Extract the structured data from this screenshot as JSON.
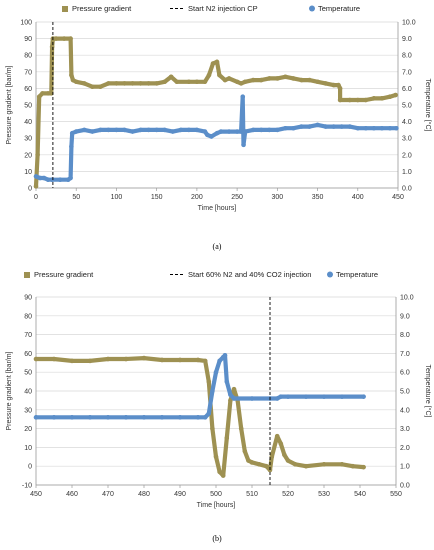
{
  "chart_data": [
    {
      "type": "scatter",
      "caption": "(a)",
      "xlabel": "Time [hours]",
      "ylabel": "Pressure gradient [bar/m]",
      "y2label": "Temperature [°C]",
      "xlim": [
        0,
        450
      ],
      "ylim": [
        0,
        100
      ],
      "y2lim": [
        0,
        10
      ],
      "xticks": [
        "0",
        "50",
        "100",
        "150",
        "200",
        "250",
        "300",
        "350",
        "400",
        "450"
      ],
      "yticks": [
        "0",
        "10",
        "20",
        "30",
        "40",
        "50",
        "60",
        "70",
        "80",
        "90",
        "100"
      ],
      "y2ticks": [
        "0.0",
        "1.0",
        "2.0",
        "3.0",
        "4.0",
        "5.0",
        "6.0",
        "7.0",
        "8.0",
        "9.0",
        "10.0"
      ],
      "grid": true,
      "legend": {
        "placement": "top",
        "entries": [
          "Pressure gradient",
          "Start N2 injection CP",
          "Temperature"
        ]
      },
      "colors": {
        "pressure": "#9e9152",
        "temperature": "#5b8ec9",
        "marker": "#000000"
      },
      "vline_x": 21,
      "series": [
        {
          "name": "Pressure gradient",
          "axis": "left",
          "points": [
            [
              0,
              1
            ],
            [
              2,
              20
            ],
            [
              4,
              55
            ],
            [
              8,
              57
            ],
            [
              15,
              57
            ],
            [
              19,
              57
            ],
            [
              20,
              85
            ],
            [
              21,
              90
            ],
            [
              25,
              90
            ],
            [
              35,
              90
            ],
            [
              43,
              90
            ],
            [
              44,
              68
            ],
            [
              46,
              65
            ],
            [
              50,
              64
            ],
            [
              60,
              63
            ],
            [
              70,
              61
            ],
            [
              80,
              61
            ],
            [
              90,
              63
            ],
            [
              100,
              63
            ],
            [
              110,
              63
            ],
            [
              120,
              63
            ],
            [
              130,
              63
            ],
            [
              140,
              63
            ],
            [
              150,
              63
            ],
            [
              160,
              64
            ],
            [
              168,
              67
            ],
            [
              175,
              64
            ],
            [
              190,
              64
            ],
            [
              200,
              64
            ],
            [
              210,
              64
            ],
            [
              215,
              68
            ],
            [
              220,
              75
            ],
            [
              225,
              76
            ],
            [
              228,
              68
            ],
            [
              235,
              65
            ],
            [
              240,
              66
            ],
            [
              250,
              64
            ],
            [
              255,
              63
            ],
            [
              260,
              64
            ],
            [
              270,
              65
            ],
            [
              280,
              65
            ],
            [
              290,
              66
            ],
            [
              300,
              66
            ],
            [
              310,
              67
            ],
            [
              320,
              66
            ],
            [
              330,
              65
            ],
            [
              340,
              65
            ],
            [
              350,
              64
            ],
            [
              360,
              63
            ],
            [
              370,
              62
            ],
            [
              376,
              62
            ],
            [
              378,
              60
            ],
            [
              378,
              53
            ],
            [
              390,
              53
            ],
            [
              400,
              53
            ],
            [
              410,
              53
            ],
            [
              420,
              54
            ],
            [
              430,
              54
            ],
            [
              440,
              55
            ],
            [
              447,
              56
            ]
          ]
        },
        {
          "name": "Temperature",
          "axis": "right",
          "points": [
            [
              0,
              0.7
            ],
            [
              5,
              0.6
            ],
            [
              10,
              0.6
            ],
            [
              15,
              0.5
            ],
            [
              20,
              0.5
            ],
            [
              30,
              0.5
            ],
            [
              40,
              0.5
            ],
            [
              43,
              0.6
            ],
            [
              44,
              2.5
            ],
            [
              45,
              3.3
            ],
            [
              50,
              3.4
            ],
            [
              60,
              3.5
            ],
            [
              70,
              3.4
            ],
            [
              80,
              3.5
            ],
            [
              90,
              3.5
            ],
            [
              100,
              3.5
            ],
            [
              110,
              3.5
            ],
            [
              120,
              3.4
            ],
            [
              130,
              3.5
            ],
            [
              140,
              3.5
            ],
            [
              150,
              3.5
            ],
            [
              160,
              3.5
            ],
            [
              170,
              3.4
            ],
            [
              180,
              3.5
            ],
            [
              190,
              3.5
            ],
            [
              200,
              3.5
            ],
            [
              210,
              3.4
            ],
            [
              213,
              3.2
            ],
            [
              218,
              3.1
            ],
            [
              225,
              3.3
            ],
            [
              230,
              3.4
            ],
            [
              240,
              3.4
            ],
            [
              250,
              3.4
            ],
            [
              255,
              3.4
            ],
            [
              257,
              5.5
            ],
            [
              258,
              2.6
            ],
            [
              260,
              3.4
            ],
            [
              270,
              3.5
            ],
            [
              280,
              3.5
            ],
            [
              290,
              3.5
            ],
            [
              300,
              3.5
            ],
            [
              310,
              3.6
            ],
            [
              320,
              3.6
            ],
            [
              330,
              3.7
            ],
            [
              340,
              3.7
            ],
            [
              350,
              3.8
            ],
            [
              360,
              3.7
            ],
            [
              370,
              3.7
            ],
            [
              380,
              3.7
            ],
            [
              390,
              3.7
            ],
            [
              400,
              3.6
            ],
            [
              410,
              3.6
            ],
            [
              420,
              3.6
            ],
            [
              430,
              3.6
            ],
            [
              440,
              3.6
            ],
            [
              448,
              3.6
            ]
          ]
        }
      ]
    },
    {
      "type": "scatter",
      "caption": "(b)",
      "xlabel": "Time [hours]",
      "ylabel": "Pressure gradient [bar/m]",
      "y2label": "Temperature [°C]",
      "xlim": [
        450,
        550
      ],
      "ylim": [
        -10,
        90
      ],
      "y2lim": [
        0,
        10
      ],
      "xticks": [
        "450",
        "460",
        "470",
        "480",
        "490",
        "500",
        "510",
        "520",
        "530",
        "540",
        "550"
      ],
      "yticks": [
        "-10",
        "0",
        "10",
        "20",
        "30",
        "40",
        "50",
        "60",
        "70",
        "80",
        "90"
      ],
      "y2ticks": [
        "0.0",
        "1.0",
        "2.0",
        "3.0",
        "4.0",
        "5.0",
        "6.0",
        "7.0",
        "8.0",
        "9.0",
        "10.0"
      ],
      "grid": true,
      "legend": {
        "placement": "top",
        "entries": [
          "Pressure gradient",
          "Start 60% N2 and 40% CO2 injection",
          "Temperature"
        ]
      },
      "colors": {
        "pressure": "#9e9152",
        "temperature": "#5b8ec9",
        "marker": "#000000"
      },
      "vline_x": 515,
      "series": [
        {
          "name": "Pressure gradient",
          "axis": "left",
          "points": [
            [
              450,
              57
            ],
            [
              455,
              57
            ],
            [
              460,
              56
            ],
            [
              465,
              56
            ],
            [
              470,
              57
            ],
            [
              475,
              57
            ],
            [
              480,
              57.5
            ],
            [
              485,
              56.5
            ],
            [
              490,
              56.5
            ],
            [
              495,
              56.5
            ],
            [
              497,
              56
            ],
            [
              498,
              45
            ],
            [
              499,
              20
            ],
            [
              500,
              5
            ],
            [
              501,
              -3
            ],
            [
              502,
              -5
            ],
            [
              503,
              15
            ],
            [
              504,
              35
            ],
            [
              505,
              41
            ],
            [
              506,
              35
            ],
            [
              507,
              20
            ],
            [
              508,
              8
            ],
            [
              509,
              3
            ],
            [
              510,
              2
            ],
            [
              512,
              1
            ],
            [
              514,
              0
            ],
            [
              515,
              -2
            ],
            [
              515.5,
              5
            ],
            [
              517,
              16
            ],
            [
              518,
              12
            ],
            [
              519,
              6
            ],
            [
              520,
              3
            ],
            [
              522,
              1
            ],
            [
              525,
              0
            ],
            [
              530,
              1
            ],
            [
              535,
              1
            ],
            [
              538,
              0
            ],
            [
              541,
              -0.5
            ]
          ]
        },
        {
          "name": "Temperature",
          "axis": "right",
          "points": [
            [
              450,
              3.6
            ],
            [
              455,
              3.6
            ],
            [
              460,
              3.6
            ],
            [
              465,
              3.6
            ],
            [
              470,
              3.6
            ],
            [
              475,
              3.6
            ],
            [
              480,
              3.6
            ],
            [
              485,
              3.6
            ],
            [
              490,
              3.6
            ],
            [
              495,
              3.6
            ],
            [
              497,
              3.6
            ],
            [
              498,
              3.8
            ],
            [
              499,
              5.0
            ],
            [
              500,
              6.0
            ],
            [
              501,
              6.6
            ],
            [
              502,
              6.8
            ],
            [
              502.5,
              6.9
            ],
            [
              503,
              5.5
            ],
            [
              504,
              4.8
            ],
            [
              505,
              4.6
            ],
            [
              510,
              4.6
            ],
            [
              515,
              4.6
            ],
            [
              517,
              4.6
            ],
            [
              518,
              4.7
            ],
            [
              520,
              4.7
            ],
            [
              525,
              4.7
            ],
            [
              530,
              4.7
            ],
            [
              535,
              4.7
            ],
            [
              541,
              4.7
            ]
          ]
        }
      ]
    }
  ]
}
